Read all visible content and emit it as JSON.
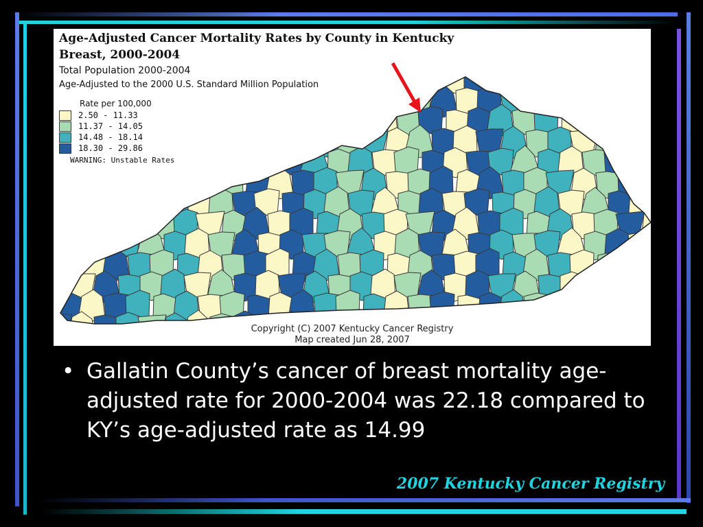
{
  "map": {
    "title_line1": "Age-Adjusted Cancer Mortality Rates by County in Kentucky",
    "title_line2": "Breast, 2000-2004",
    "subtitle_line1": "Total Population 2000-2004",
    "subtitle_line2": "Age-Adjusted to the 2000 U.S. Standard Million Population",
    "legend_title": "Rate per 100,000",
    "legend": [
      {
        "label": "2.50 -  11.33",
        "color": "#fbf7c6"
      },
      {
        "label": "11.37 -  14.05",
        "color": "#a9dcb2"
      },
      {
        "label": "14.48 -  18.14",
        "color": "#3fb2be"
      },
      {
        "label": "18.30 -  29.86",
        "color": "#245d9f"
      }
    ],
    "warning": "WARNING:  Unstable Rates",
    "copyright": "Copyright (C) 2007 Kentucky Cancer Registry",
    "created": "Map created Jun 28, 2007",
    "arrow_color": "#e8141b",
    "county_border_color": "#3a3a3a"
  },
  "bullet_text": "Gallatin County’s cancer of breast mortality age-adjusted rate for 2000-2004 was 22.18 compared to KY’s age-adjusted rate as 14.99",
  "footer": "2007 Kentucky Cancer Registry",
  "colors": {
    "background": "#000000",
    "accent_blue": "#5a7de8",
    "accent_cyan": "#1fd3e0",
    "accent_purple": "#7a52e0"
  }
}
